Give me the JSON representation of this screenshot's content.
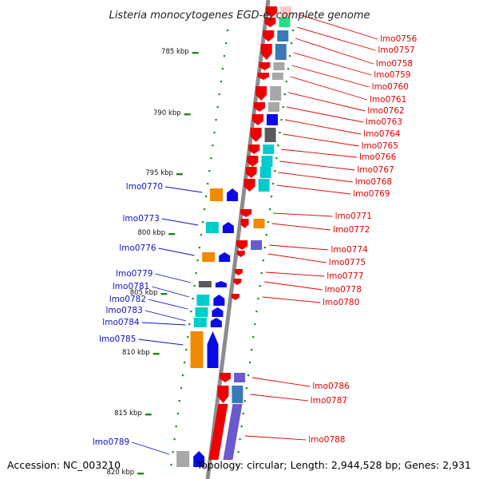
{
  "title": "Listeria monocytogenes EGD-e, complete genome",
  "footer": {
    "accession": "Accession: NC_003210",
    "topology": "Topology: circular; Length: 2,944,528 bp; Genes: 2,931"
  },
  "colors": {
    "backbone": "#8c8c8c",
    "tick": "#1a8a1a",
    "forward_label": "#e00000",
    "reverse_label": "#1010c8",
    "red": "#ee0000",
    "blue": "#0a0ae6",
    "orange": "#f08a00",
    "cyan": "#00cccc",
    "steelblue": "#3a7ab8",
    "gray": "#a8a8a8",
    "darkgray": "#5a5a5a",
    "purple": "#6a5acd",
    "green": "#22dd88"
  },
  "ruler_labels": [
    {
      "text": "785 kbp"
    },
    {
      "text": "790 kbp"
    },
    {
      "text": "795 kbp"
    },
    {
      "text": "800 kbp"
    },
    {
      "text": "805 kbp"
    },
    {
      "text": "810 kbp"
    },
    {
      "text": "815 kbp"
    },
    {
      "text": "820 kbp"
    }
  ],
  "forward_genes": [
    {
      "label": "lmo0756"
    },
    {
      "label": "lmo0757"
    },
    {
      "label": "lmo0758"
    },
    {
      "label": "lmo0759"
    },
    {
      "label": "lmo0760"
    },
    {
      "label": "lmo0761"
    },
    {
      "label": "lmo0762"
    },
    {
      "label": "lmo0763"
    },
    {
      "label": "lmo0764"
    },
    {
      "label": "lmo0765"
    },
    {
      "label": "lmo0766"
    },
    {
      "label": "lmo0767"
    },
    {
      "label": "lmo0768"
    },
    {
      "label": "lmo0769"
    },
    {
      "label": "lmo0771"
    },
    {
      "label": "lmo0772"
    },
    {
      "label": "lmo0774"
    },
    {
      "label": "lmo0775"
    },
    {
      "label": "lmo0777"
    },
    {
      "label": "lmo0778"
    },
    {
      "label": "lmo0780"
    },
    {
      "label": "lmo0786"
    },
    {
      "label": "lmo0787"
    },
    {
      "label": "lmo0788"
    }
  ],
  "reverse_genes": [
    {
      "label": "lmo0770"
    },
    {
      "label": "lmo0773"
    },
    {
      "label": "lmo0776"
    },
    {
      "label": "lmo0779"
    },
    {
      "label": "lmo0781"
    },
    {
      "label": "lmo0782"
    },
    {
      "label": "lmo0783"
    },
    {
      "label": "lmo0784"
    },
    {
      "label": "lmo0785"
    },
    {
      "label": "lmo0789"
    }
  ]
}
